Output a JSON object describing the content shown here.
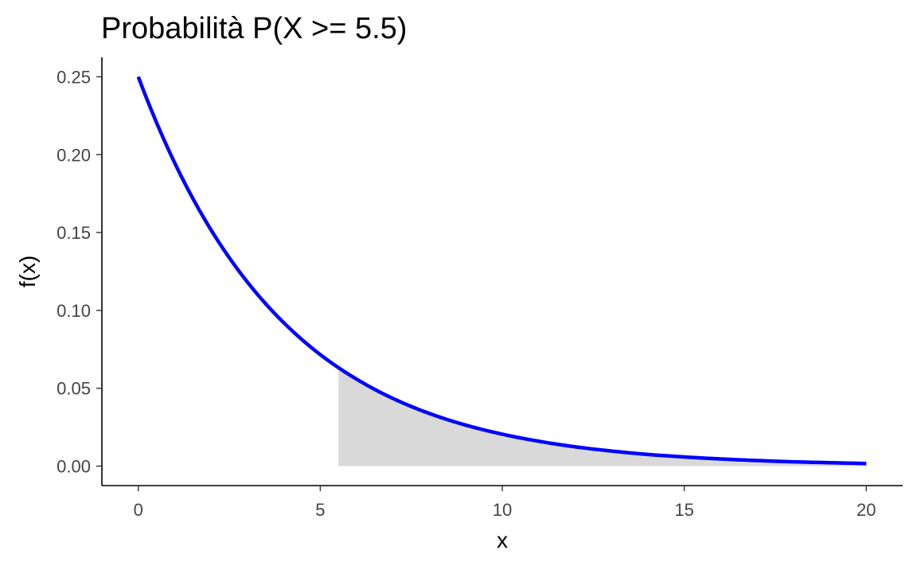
{
  "chart_data": {
    "type": "area",
    "title": "Probabilità P(X >= 5.5)",
    "xlabel": "x",
    "ylabel": "f(x)",
    "xlim": [
      -1,
      21
    ],
    "ylim": [
      -0.0125,
      0.2625
    ],
    "x_ticks": [
      0,
      5,
      10,
      15,
      20
    ],
    "x_tick_labels": [
      "0",
      "5",
      "10",
      "15",
      "20"
    ],
    "y_ticks": [
      0,
      0.05,
      0.1,
      0.15,
      0.2,
      0.25
    ],
    "y_tick_labels": [
      "0.00",
      "0.05",
      "0.10",
      "0.15",
      "0.20",
      "0.25"
    ],
    "grid": false,
    "series": [
      {
        "kind": "line",
        "color": "#0000ff",
        "x": [
          0,
          1,
          2,
          3,
          4,
          5,
          5.5,
          6,
          7,
          8,
          9,
          10,
          11,
          12,
          13,
          14,
          15,
          16,
          17,
          18,
          19,
          20
        ],
        "values": [
          0.25,
          0.1947,
          0.1516,
          0.1181,
          0.092,
          0.0716,
          0.0632,
          0.0558,
          0.0434,
          0.0338,
          0.0263,
          0.0205,
          0.016,
          0.0124,
          0.0097,
          0.0075,
          0.0059,
          0.0046,
          0.0036,
          0.0028,
          0.0022,
          0.0017
        ]
      },
      {
        "kind": "shaded-area",
        "color": "#d9d9d9",
        "x": [
          5.5,
          6,
          7,
          8,
          9,
          10,
          11,
          12,
          13,
          14,
          15,
          16,
          17,
          18,
          19,
          20
        ],
        "values": [
          0.0632,
          0.0558,
          0.0434,
          0.0338,
          0.0263,
          0.0205,
          0.016,
          0.0124,
          0.0097,
          0.0075,
          0.0059,
          0.0046,
          0.0036,
          0.0028,
          0.0022,
          0.0017
        ]
      }
    ]
  }
}
